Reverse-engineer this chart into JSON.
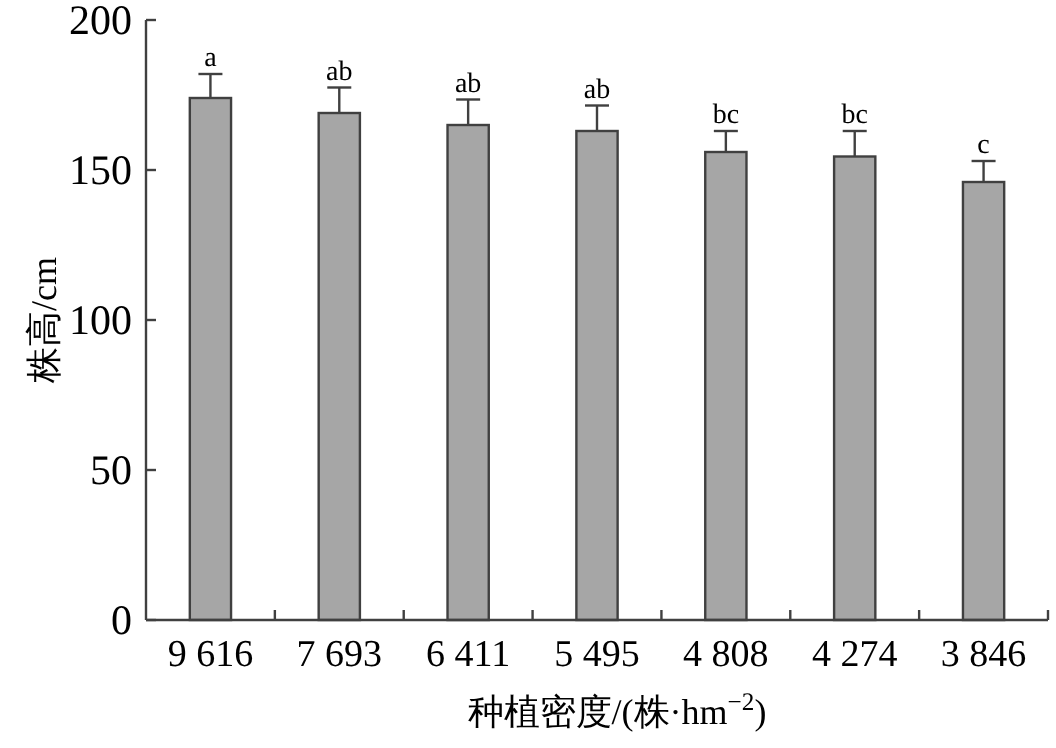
{
  "chart_data": {
    "type": "bar",
    "ylabel": "株高/cm",
    "xlabel": "种植密度/(株·hm$^{−2}$)",
    "categories": [
      "9 616",
      "7 693",
      "6 411",
      "5 495",
      "4 808",
      "4 274",
      "3 846"
    ],
    "series": [
      {
        "color": "#a6a6a6",
        "values": [
          174,
          169,
          165,
          163,
          156,
          154.5,
          146
        ],
        "errors": [
          8,
          8.5,
          8.5,
          8.5,
          7,
          8.5,
          7
        ]
      }
    ],
    "ylim": [
      0,
      200
    ],
    "yticks": [
      0,
      50,
      100,
      150,
      200
    ],
    "grid": false,
    "annotations": [
      {
        "text": "a",
        "x": "9 616",
        "y": 182
      },
      {
        "text": "ab",
        "x": "7 693",
        "y": 177.5
      },
      {
        "text": "ab",
        "x": "6 411",
        "y": 173.5
      },
      {
        "text": "ab",
        "x": "5 495",
        "y": 171.5
      },
      {
        "text": "bc",
        "x": "4 808",
        "y": 163
      },
      {
        "text": "bc",
        "x": "4 274",
        "y": 163
      },
      {
        "text": "c",
        "x": "3 846",
        "y": 153
      }
    ]
  }
}
